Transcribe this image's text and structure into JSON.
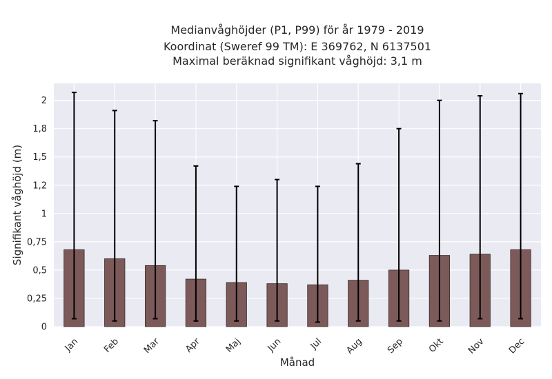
{
  "chart_data": {
    "type": "bar",
    "title_lines": [
      "Medianvåghöjder (P1, P99) för år 1979 - 2019",
      "Koordinat (Sweref 99 TM): E 369762, N 6137501",
      "Maximal beräknad signifikant våghöjd: 3,1 m"
    ],
    "xlabel": "Månad",
    "ylabel": "Signifikant våghöjd (m)",
    "categories": [
      "Jan",
      "Feb",
      "Mar",
      "Apr",
      "Maj",
      "Jun",
      "Jul",
      "Aug",
      "Sep",
      "Okt",
      "Nov",
      "Dec"
    ],
    "values": [
      0.68,
      0.6,
      0.54,
      0.42,
      0.39,
      0.38,
      0.37,
      0.41,
      0.5,
      0.63,
      0.64,
      0.68
    ],
    "p1": [
      0.07,
      0.05,
      0.07,
      0.05,
      0.05,
      0.05,
      0.04,
      0.05,
      0.05,
      0.05,
      0.07,
      0.07
    ],
    "p99": [
      2.07,
      1.91,
      1.82,
      1.42,
      1.24,
      1.3,
      1.24,
      1.44,
      1.75,
      2.0,
      2.04,
      2.06
    ],
    "yticks": [
      0,
      0.25,
      0.5,
      0.75,
      1,
      1.25,
      1.5,
      1.75,
      2
    ],
    "ytick_labels": [
      "0",
      "0,25",
      "0,5",
      "0,75",
      "1",
      "1,2",
      "1,5",
      "1,8",
      "2"
    ],
    "ylim": [
      0,
      2.15
    ],
    "grid": true,
    "colors": {
      "bar": "#7c5a5a",
      "bar_edge": "#3a2a2a",
      "plot_background": "#eaeaf2",
      "grid": "#ffffff",
      "errorbar": "#000000"
    }
  }
}
